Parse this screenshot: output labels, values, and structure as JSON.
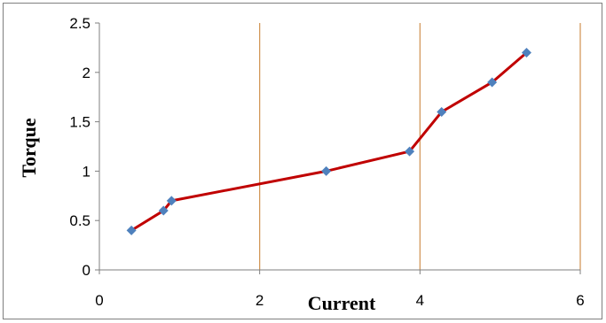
{
  "chart_data": {
    "type": "scatter",
    "title": "",
    "xlabel": "Current",
    "ylabel": "Torque",
    "xlim": [
      0,
      6
    ],
    "ylim": [
      0,
      2.5
    ],
    "x_ticks": [
      0,
      2,
      4,
      6
    ],
    "y_ticks": [
      0,
      0.5,
      1,
      1.5,
      2,
      2.5
    ],
    "x_tick_labels": [
      "0",
      "2",
      "4",
      "6"
    ],
    "y_tick_labels": [
      "0",
      "0.5",
      "1",
      "1.5",
      "2",
      "2.5"
    ],
    "grid": "vertical",
    "legend": "none",
    "series": [
      {
        "x": [
          0.4,
          0.8,
          0.9,
          2.83,
          3.87,
          4.27,
          4.9,
          5.33
        ],
        "y": [
          0.4,
          0.6,
          0.7,
          1.0,
          1.2,
          1.6,
          1.9,
          2.2
        ],
        "line_color": "#c00000",
        "marker": "diamond",
        "marker_color": "#4f81bd"
      }
    ]
  },
  "colors": {
    "gridline": "#d0914f",
    "axis": "#7f7f7f",
    "line": "#c00000",
    "marker": "#4f81bd"
  }
}
